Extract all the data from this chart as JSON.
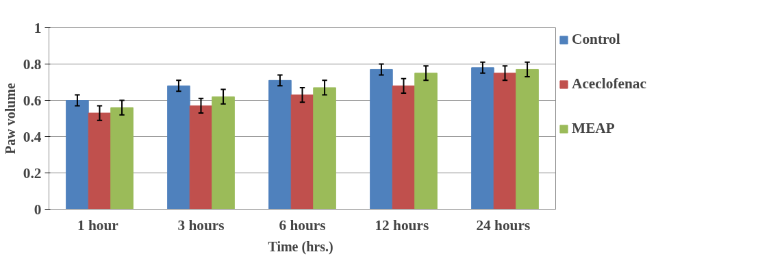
{
  "chart_data": {
    "type": "bar",
    "xlabel": "Time  (hrs.)",
    "ylabel": "Paw volume",
    "categories": [
      "1  hour",
      "3 hours",
      "6 hours",
      "12  hours",
      "24  hours"
    ],
    "series": [
      {
        "name": "Control",
        "color": "#4f81bd",
        "values": [
          0.6,
          0.68,
          0.71,
          0.77,
          0.78
        ],
        "errors": [
          0.03,
          0.03,
          0.03,
          0.03,
          0.03
        ]
      },
      {
        "name": "Aceclofenac",
        "color": "#c0504d",
        "values": [
          0.53,
          0.57,
          0.63,
          0.68,
          0.75
        ],
        "errors": [
          0.04,
          0.04,
          0.04,
          0.04,
          0.04
        ]
      },
      {
        "name": "MEAP",
        "color": "#9bbb59",
        "values": [
          0.56,
          0.62,
          0.67,
          0.75,
          0.77
        ],
        "errors": [
          0.04,
          0.04,
          0.04,
          0.04,
          0.04
        ]
      }
    ],
    "ylim": [
      0,
      1
    ],
    "yticks": [
      0,
      0.2,
      0.4,
      0.6,
      0.8,
      1
    ],
    "grid": "y",
    "legend": "right"
  }
}
